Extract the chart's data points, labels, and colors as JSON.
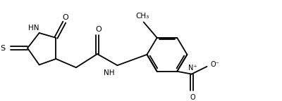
{
  "bg_color": "#ffffff",
  "line_color": "#000000",
  "lw": 1.3,
  "fs": 7.5,
  "figsize": [
    4.0,
    1.44
  ],
  "dpi": 100,
  "xlim": [
    0,
    10
  ],
  "ylim": [
    0,
    3.6
  ]
}
